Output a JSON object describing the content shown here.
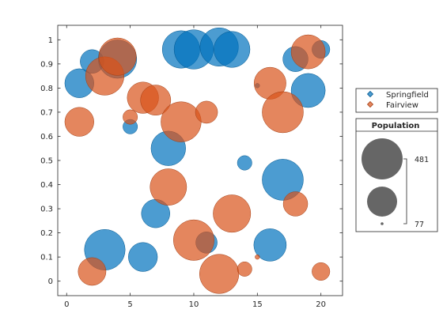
{
  "chart_data": {
    "type": "scatter",
    "title": "",
    "xlabel": "",
    "ylabel": "",
    "xlim": [
      -0.7,
      21.7
    ],
    "ylim": [
      -0.06,
      1.06
    ],
    "xticks": [
      0,
      5,
      10,
      15,
      20
    ],
    "yticks": [
      0,
      0.1,
      0.2,
      0.3,
      0.4,
      0.5,
      0.6,
      0.7,
      0.8,
      0.9,
      1
    ],
    "grid": false,
    "legend_position": "right",
    "series": [
      {
        "name": "Springfield",
        "color": "#0072BD",
        "points": [
          {
            "x": 1,
            "y": 0.82,
            "size": 240
          },
          {
            "x": 2,
            "y": 0.91,
            "size": 160
          },
          {
            "x": 3,
            "y": 0.13,
            "size": 470
          },
          {
            "x": 4,
            "y": 0.92,
            "size": 420
          },
          {
            "x": 5,
            "y": 0.64,
            "size": 60
          },
          {
            "x": 6,
            "y": 0.1,
            "size": 240
          },
          {
            "x": 7,
            "y": 0.28,
            "size": 230
          },
          {
            "x": 8,
            "y": 0.55,
            "size": 340
          },
          {
            "x": 9,
            "y": 0.96,
            "size": 400
          },
          {
            "x": 10,
            "y": 0.96,
            "size": 440
          },
          {
            "x": 11,
            "y": 0.16,
            "size": 130
          },
          {
            "x": 12,
            "y": 0.97,
            "size": 420
          },
          {
            "x": 13,
            "y": 0.96,
            "size": 370
          },
          {
            "x": 14,
            "y": 0.49,
            "size": 60
          },
          {
            "x": 15,
            "y": 0.81,
            "size": 6
          },
          {
            "x": 16,
            "y": 0.15,
            "size": 300
          },
          {
            "x": 17,
            "y": 0.42,
            "size": 481
          },
          {
            "x": 18,
            "y": 0.92,
            "size": 180
          },
          {
            "x": 19,
            "y": 0.79,
            "size": 330
          },
          {
            "x": 20,
            "y": 0.96,
            "size": 90
          }
        ]
      },
      {
        "name": "Fairview",
        "color": "#D95319",
        "points": [
          {
            "x": 1,
            "y": 0.66,
            "size": 240
          },
          {
            "x": 2,
            "y": 0.04,
            "size": 220
          },
          {
            "x": 3,
            "y": 0.85,
            "size": 420
          },
          {
            "x": 4,
            "y": 0.93,
            "size": 400
          },
          {
            "x": 5,
            "y": 0.68,
            "size": 60
          },
          {
            "x": 6,
            "y": 0.76,
            "size": 280
          },
          {
            "x": 7,
            "y": 0.75,
            "size": 260
          },
          {
            "x": 8,
            "y": 0.39,
            "size": 380
          },
          {
            "x": 9,
            "y": 0.66,
            "size": 460
          },
          {
            "x": 10,
            "y": 0.17,
            "size": 470
          },
          {
            "x": 11,
            "y": 0.7,
            "size": 140
          },
          {
            "x": 12,
            "y": 0.03,
            "size": 440
          },
          {
            "x": 13,
            "y": 0.28,
            "size": 400
          },
          {
            "x": 14,
            "y": 0.05,
            "size": 60
          },
          {
            "x": 15,
            "y": 0.1,
            "size": 6
          },
          {
            "x": 16,
            "y": 0.82,
            "size": 290
          },
          {
            "x": 17,
            "y": 0.7,
            "size": 481
          },
          {
            "x": 18,
            "y": 0.32,
            "size": 170
          },
          {
            "x": 19,
            "y": 0.95,
            "size": 330
          },
          {
            "x": 20,
            "y": 0.04,
            "size": 90
          }
        ]
      }
    ],
    "size_legend": {
      "title": "Population",
      "max_label": "481",
      "min_label": "77",
      "max_value": 481,
      "mid_value": 279,
      "min_value": 77
    }
  }
}
